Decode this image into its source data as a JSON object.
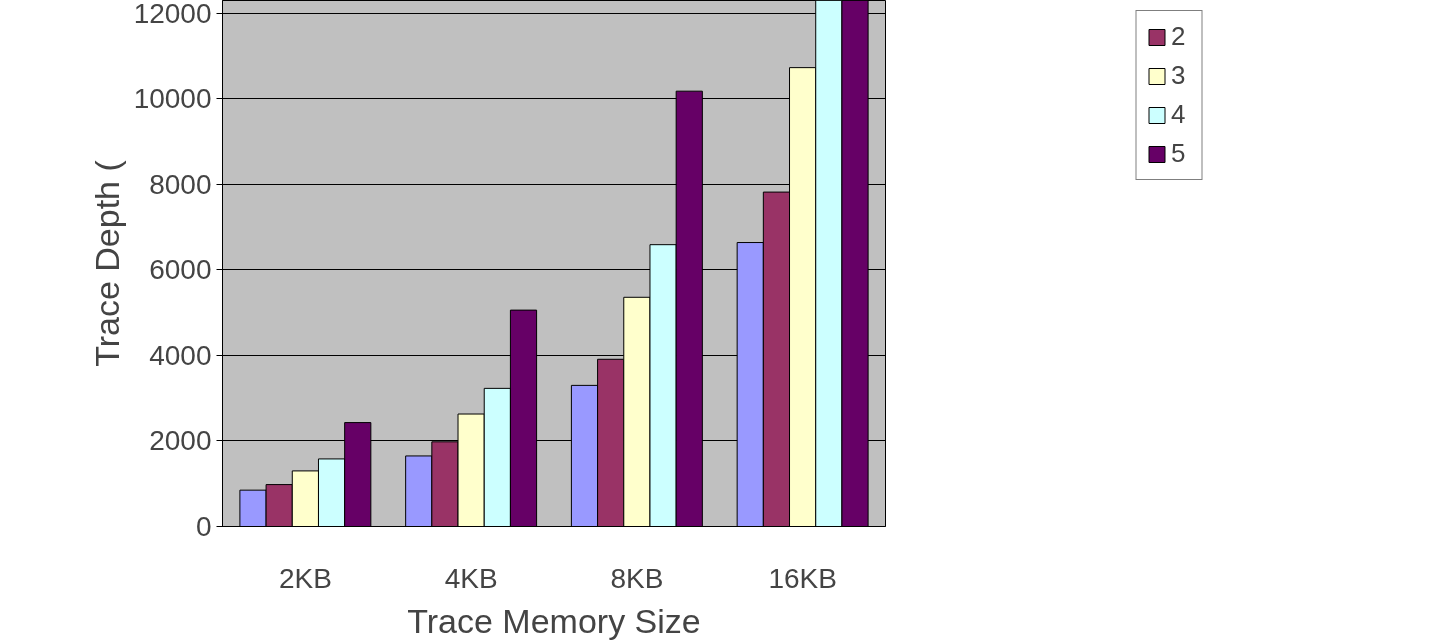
{
  "chart_data": {
    "type": "bar",
    "xlabel": "Trace Memory Size",
    "ylabel": "Trace Depth (",
    "categories": [
      "2KB",
      "4KB",
      "8KB",
      "16KB"
    ],
    "series": [
      {
        "color": "#9999ff",
        "values": [
          850,
          1650,
          3300,
          6640
        ]
      },
      {
        "name": "2",
        "color": "#993366",
        "values": [
          980,
          1980,
          3910,
          7820
        ]
      },
      {
        "name": "3",
        "color": "#ffffcc",
        "values": [
          1300,
          2630,
          5360,
          10730
        ]
      },
      {
        "name": "4",
        "color": "#ccffff",
        "values": [
          1580,
          3230,
          6590,
          12300
        ]
      },
      {
        "name": "5",
        "color": "#660066",
        "values": [
          2430,
          5060,
          10180,
          12300
        ]
      }
    ],
    "ylim": [
      0,
      12300
    ],
    "yticks": [
      0,
      2000,
      4000,
      6000,
      8000,
      10000,
      12000
    ],
    "grid": "y",
    "legend": "top right"
  }
}
